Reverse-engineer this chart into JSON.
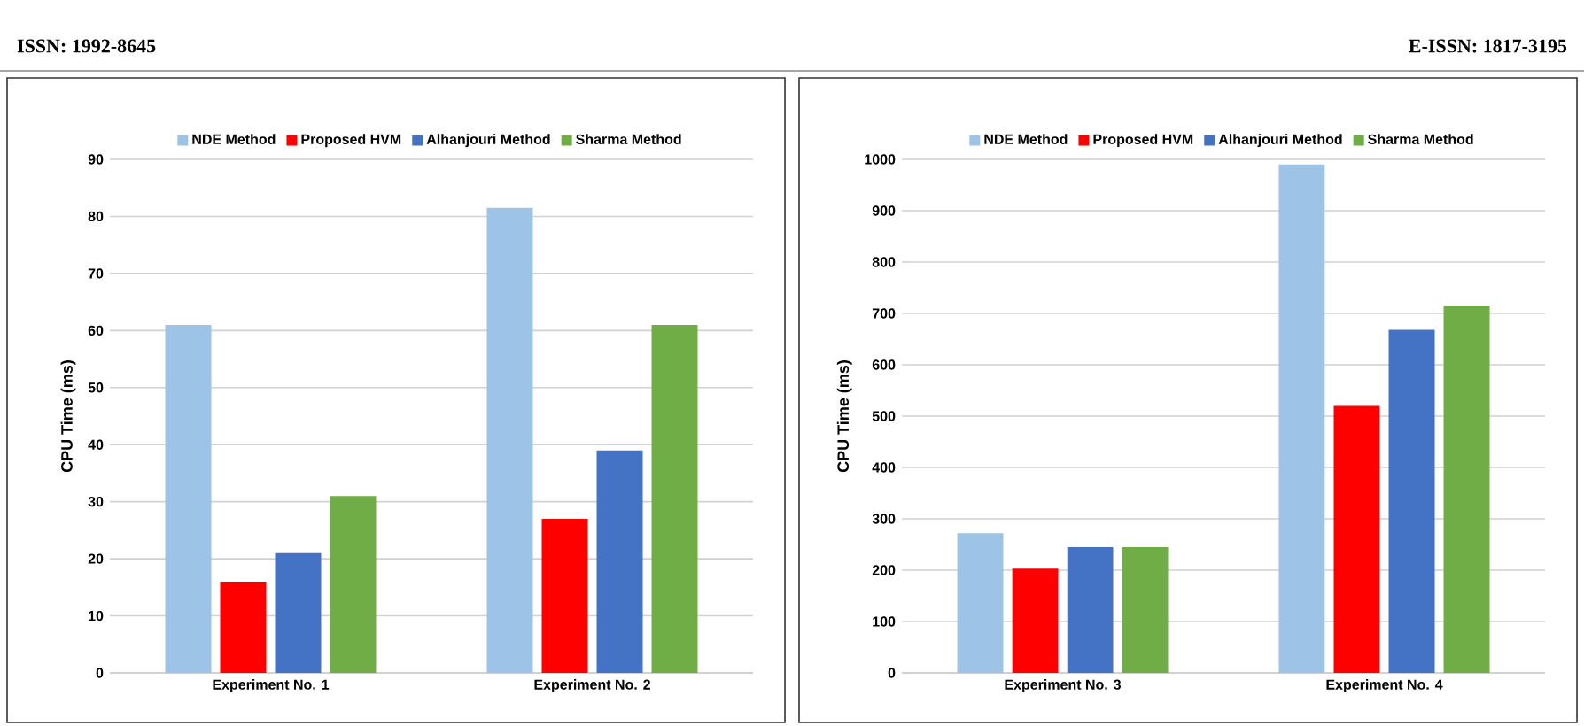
{
  "chart_data": [
    {
      "type": "bar",
      "ylabel": "CPU Time (ms)",
      "categories": [
        "Experiment No. 1",
        "Experiment No. 2"
      ],
      "ylim": [
        0,
        90
      ],
      "yticks": [
        0,
        10,
        20,
        30,
        40,
        50,
        60,
        70,
        80,
        90
      ],
      "grid": "y",
      "legend": "top",
      "annotations": [
        "ISSN: 1992-8645"
      ],
      "series": [
        {
          "name": "NDE Method",
          "color": "#9dc3e6",
          "values": [
            61,
            81.5
          ]
        },
        {
          "name": "Proposed HVM",
          "color": "#ff0000",
          "values": [
            16,
            27
          ]
        },
        {
          "name": "Alhanjouri Method",
          "color": "#4472c4",
          "values": [
            21,
            39
          ]
        },
        {
          "name": "Sharma Method",
          "color": "#70ad47",
          "values": [
            31,
            61
          ]
        }
      ]
    },
    {
      "type": "bar",
      "ylabel": "CPU Time (ms)",
      "categories": [
        "Experiment No. 3",
        "Experiment No. 4"
      ],
      "ylim": [
        0,
        1000
      ],
      "yticks": [
        0,
        100,
        200,
        300,
        400,
        500,
        600,
        700,
        800,
        900,
        1000
      ],
      "grid": "y",
      "legend": "top",
      "annotations": [
        "E-ISSN: 1817-3195"
      ],
      "series": [
        {
          "name": "NDE Method",
          "color": "#9dc3e6",
          "values": [
            272,
            990
          ]
        },
        {
          "name": "Proposed HVM",
          "color": "#ff0000",
          "values": [
            203,
            520
          ]
        },
        {
          "name": "Alhanjouri Method",
          "color": "#4472c4",
          "values": [
            245,
            668
          ]
        },
        {
          "name": "Sharma Method",
          "color": "#70ad47",
          "values": [
            245,
            714
          ]
        }
      ]
    }
  ]
}
